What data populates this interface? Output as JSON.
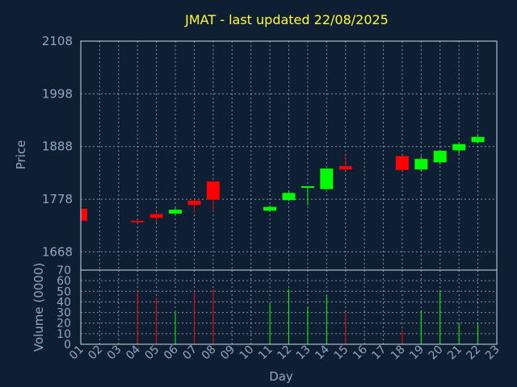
{
  "chart_data": {
    "type": "candlestick",
    "title": "JMAT - last updated 22/08/2025",
    "ylabel": "Price",
    "volume_label": "Volume (0000)",
    "xlabel": "Day",
    "price_ylim": [
      1630,
      2108
    ],
    "price_ticks": [
      1668,
      1778,
      1888,
      1998,
      2108
    ],
    "volume_ylim": [
      0,
      70
    ],
    "volume_ticks": [
      0,
      10,
      20,
      30,
      40,
      50,
      60,
      70
    ],
    "days": [
      "01",
      "02",
      "03",
      "04",
      "05",
      "06",
      "07",
      "08",
      "09",
      "10",
      "11",
      "12",
      "13",
      "14",
      "15",
      "16",
      "17",
      "18",
      "19",
      "20",
      "21",
      "22",
      "23"
    ],
    "up_color": "#00ff00",
    "down_color": "#ff0000",
    "candles": [
      {
        "day": "01",
        "open": 1758,
        "close": 1733,
        "high": 1758,
        "low": 1733,
        "volume": 0
      },
      {
        "day": "04",
        "open": 1733,
        "close": 1731,
        "high": 1733,
        "low": 1727,
        "volume": 50
      },
      {
        "day": "05",
        "open": 1747,
        "close": 1739,
        "high": 1750,
        "low": 1730,
        "volume": 44
      },
      {
        "day": "06",
        "open": 1748,
        "close": 1756,
        "high": 1760,
        "low": 1745,
        "volume": 30
      },
      {
        "day": "07",
        "open": 1775,
        "close": 1766,
        "high": 1778,
        "low": 1750,
        "volume": 50
      },
      {
        "day": "08",
        "open": 1815,
        "close": 1777,
        "high": 1815,
        "low": 1755,
        "volume": 52
      },
      {
        "day": "11",
        "open": 1754,
        "close": 1762,
        "high": 1765,
        "low": 1752,
        "volume": 39
      },
      {
        "day": "12",
        "open": 1776,
        "close": 1791,
        "high": 1794,
        "low": 1774,
        "volume": 52
      },
      {
        "day": "13",
        "open": 1802,
        "close": 1805,
        "high": 1806,
        "low": 1765,
        "volume": 35
      },
      {
        "day": "14",
        "open": 1799,
        "close": 1842,
        "high": 1842,
        "low": 1798,
        "volume": 46
      },
      {
        "day": "15",
        "open": 1847,
        "close": 1840,
        "high": 1868,
        "low": 1840,
        "volume": 30
      },
      {
        "day": "18",
        "open": 1868,
        "close": 1839,
        "high": 1868,
        "low": 1838,
        "volume": 14
      },
      {
        "day": "19",
        "open": 1840,
        "close": 1862,
        "high": 1868,
        "low": 1836,
        "volume": 32
      },
      {
        "day": "20",
        "open": 1855,
        "close": 1879,
        "high": 1880,
        "low": 1850,
        "volume": 51
      },
      {
        "day": "21",
        "open": 1880,
        "close": 1893,
        "high": 1895,
        "low": 1873,
        "volume": 20
      },
      {
        "day": "22",
        "open": 1897,
        "close": 1908,
        "high": 1912,
        "low": 1895,
        "volume": 20
      }
    ]
  }
}
